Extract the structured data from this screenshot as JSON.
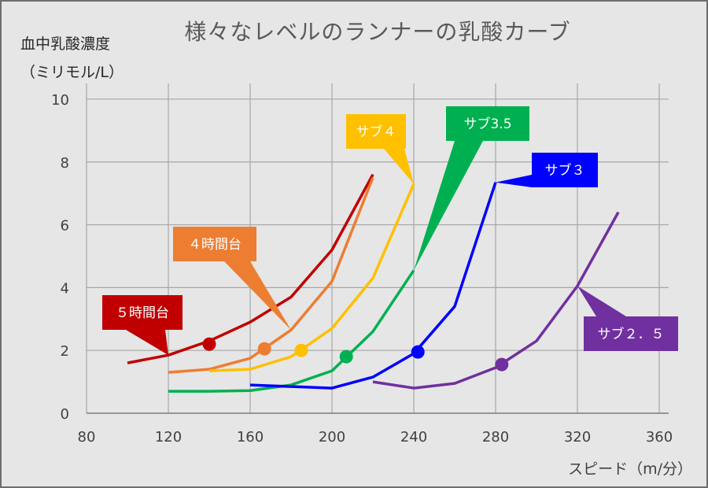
{
  "chart_data": {
    "type": "line",
    "title": "様々なレベルのランナーの乳酸カーブ",
    "ylabel": [
      "血中乳酸濃度",
      "（ミリモル/L）"
    ],
    "xlabel": "スピード（m/分）",
    "xlim": [
      80,
      360
    ],
    "ylim": [
      0,
      10.5
    ],
    "xticks": [
      "80",
      "120",
      "160",
      "200",
      "240",
      "280",
      "320",
      "360"
    ],
    "yticks": [
      "0",
      "2",
      "4",
      "6",
      "8",
      "10"
    ],
    "grid": true,
    "legend": "callouts",
    "series": [
      {
        "name": "５時間台",
        "color": "#c00000",
        "x": [
          100,
          120,
          140,
          160,
          180,
          200,
          220
        ],
        "y": [
          1.6,
          1.85,
          2.3,
          2.9,
          3.7,
          5.2,
          7.6
        ],
        "marker": [
          140,
          2.2
        ]
      },
      {
        "name": "４時間台",
        "color": "#ed7d31",
        "x": [
          120,
          140,
          160,
          180,
          200,
          220
        ],
        "y": [
          1.3,
          1.4,
          1.75,
          2.65,
          4.2,
          7.5
        ],
        "marker": [
          167,
          2.05
        ]
      },
      {
        "name": "サブ４",
        "color": "#ffc000",
        "x": [
          140,
          160,
          180,
          200,
          220,
          240
        ],
        "y": [
          1.35,
          1.4,
          1.8,
          2.7,
          4.3,
          7.3
        ],
        "marker": [
          185,
          2.0
        ]
      },
      {
        "name": "サブ3.5",
        "color": "#00b050",
        "x": [
          120,
          140,
          160,
          180,
          200,
          220,
          240
        ],
        "y": [
          0.7,
          0.7,
          0.72,
          0.9,
          1.35,
          2.6,
          4.55
        ],
        "marker": [
          207,
          1.8
        ]
      },
      {
        "name": "サブ３",
        "color": "#0000ff",
        "x": [
          160,
          180,
          200,
          220,
          240,
          260,
          280
        ],
        "y": [
          0.9,
          0.85,
          0.8,
          1.15,
          1.9,
          3.4,
          7.35
        ],
        "marker": [
          242,
          1.95
        ]
      },
      {
        "name": "サブ２．５",
        "color": "#7030a0",
        "x": [
          220,
          240,
          260,
          280,
          300,
          320,
          340
        ],
        "y": [
          1.0,
          0.8,
          0.95,
          1.45,
          2.3,
          4.05,
          6.4
        ],
        "marker": [
          283,
          1.55
        ]
      }
    ]
  }
}
